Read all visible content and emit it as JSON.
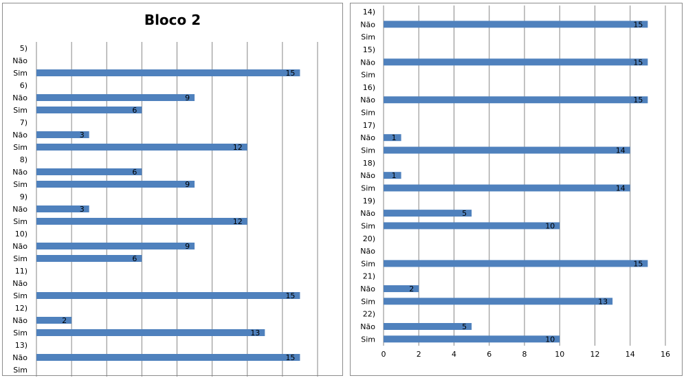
{
  "colors": {
    "bar": "#4f81bd",
    "grid": "#868686",
    "text": "#000000"
  },
  "chart_data": [
    {
      "type": "bar",
      "orientation": "horizontal",
      "title": "Bloco 2",
      "xlim": [
        0,
        16
      ],
      "grid": true,
      "categories": [
        "5)",
        "Não",
        "Sim",
        "6)",
        "Não",
        "Sim",
        "7)",
        "Não",
        "Sim",
        "8)",
        "Não",
        "Sim",
        "9)",
        "Não",
        "Sim",
        "10)",
        "Não",
        "Sim",
        "11)",
        "Não",
        "Sim",
        "12)",
        "Não",
        "Sim",
        "13)",
        "Não",
        "Sim"
      ],
      "values": [
        null,
        null,
        15,
        null,
        9,
        6,
        null,
        3,
        12,
        null,
        6,
        9,
        null,
        3,
        12,
        null,
        9,
        6,
        null,
        null,
        15,
        null,
        2,
        13,
        null,
        15,
        null
      ],
      "data_labels": [
        "",
        "",
        "15",
        "",
        "9",
        "6",
        "",
        "3",
        "12",
        "",
        "6",
        "9",
        "",
        "3",
        "12",
        "",
        "9",
        "6",
        "",
        "",
        "15",
        "",
        "2",
        "13",
        "",
        "15",
        ""
      ]
    },
    {
      "type": "bar",
      "orientation": "horizontal",
      "title": "",
      "xlim": [
        0,
        16
      ],
      "xticks": [
        "0",
        "2",
        "4",
        "6",
        "8",
        "10",
        "12",
        "14",
        "16"
      ],
      "grid": true,
      "categories": [
        "14)",
        "Não",
        "Sim",
        "15)",
        "Não",
        "Sim",
        "16)",
        "Não",
        "Sim",
        "17)",
        "Não",
        "Sim",
        "18)",
        "Não",
        "Sim",
        "19)",
        "Não",
        "Sim",
        "20)",
        "Não",
        "Sim",
        "21)",
        "Não",
        "Sim",
        "22)",
        "Não",
        "Sim"
      ],
      "values": [
        null,
        15,
        null,
        null,
        15,
        null,
        null,
        15,
        null,
        null,
        1,
        14,
        null,
        1,
        14,
        null,
        5,
        10,
        null,
        null,
        15,
        null,
        2,
        13,
        null,
        5,
        10
      ],
      "data_labels": [
        "",
        "15",
        "",
        "",
        "15",
        "",
        "",
        "15",
        "",
        "",
        "1",
        "14",
        "",
        "1",
        "14",
        "",
        "5",
        "10",
        "",
        "",
        "15",
        "",
        "2",
        "13",
        "",
        "5",
        "10"
      ]
    }
  ]
}
